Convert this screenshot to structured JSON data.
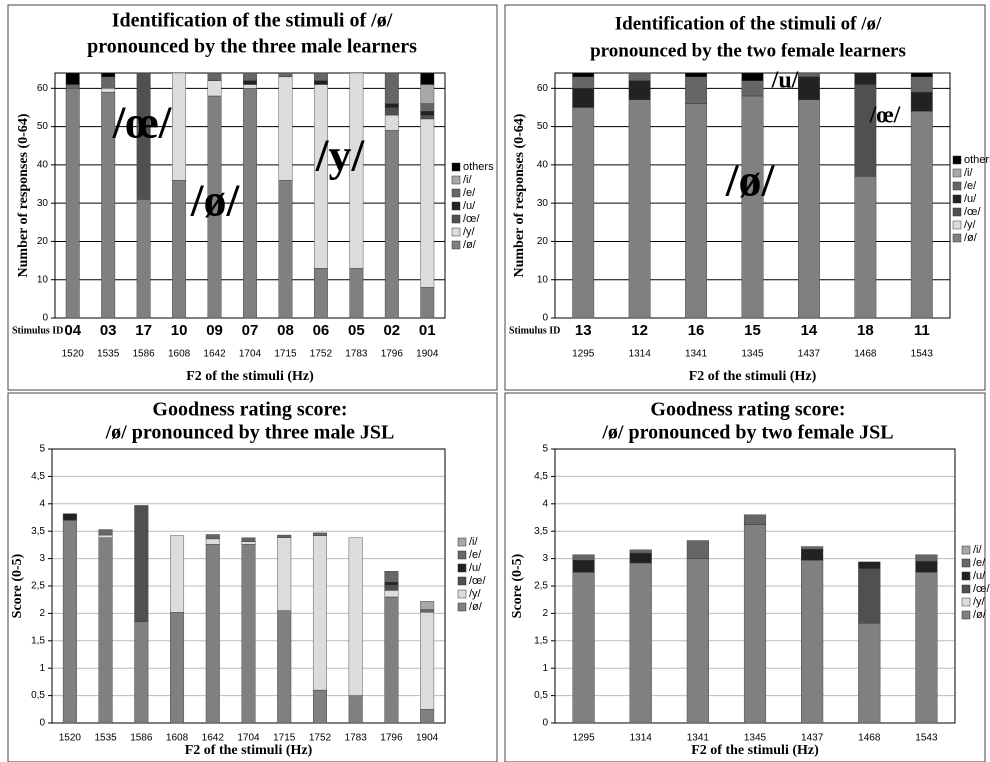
{
  "chart_data": [
    {
      "type": "bar",
      "stacked": true,
      "title": [
        "Identification of the stimuli of /ø/",
        "pronounced by the three male learners"
      ],
      "y_label": "Number of responses (0-64)",
      "x_label": "F2 of the stimuli (Hz)",
      "stimulus_id_label": "Stimulus ID",
      "stimulus_ids": [
        "04",
        "03",
        "17",
        "10",
        "09",
        "07",
        "08",
        "06",
        "05",
        "02",
        "01"
      ],
      "categories": [
        "1520",
        "1535",
        "1586",
        "1608",
        "1642",
        "1704",
        "1715",
        "1752",
        "1783",
        "1796",
        "1904"
      ],
      "ylim": [
        0,
        64
      ],
      "yticks": [
        0,
        10,
        20,
        30,
        40,
        50,
        60
      ],
      "grid": true,
      "legend": "right",
      "annotations": [
        "/œ/",
        "/ø/",
        "/y/"
      ],
      "series": [
        {
          "name": "/ø/",
          "color": "#808080",
          "values": [
            60,
            59,
            31,
            36,
            58,
            60,
            36,
            13,
            13,
            49,
            8
          ]
        },
        {
          "name": "/y/",
          "color": "#dcdcdc",
          "values": [
            0,
            1,
            0,
            28,
            4,
            1,
            27,
            48,
            51,
            4,
            44
          ]
        },
        {
          "name": "/œ/",
          "color": "#505050",
          "values": [
            0,
            0,
            33,
            0,
            0,
            0,
            0,
            0,
            0,
            2,
            1
          ]
        },
        {
          "name": "/u/",
          "color": "#222222",
          "values": [
            0,
            0,
            0,
            0,
            0,
            1,
            0,
            1,
            0,
            1,
            1
          ]
        },
        {
          "name": "/e/",
          "color": "#666666",
          "values": [
            1,
            3,
            0,
            0,
            2,
            2,
            1,
            2,
            0,
            8,
            2
          ]
        },
        {
          "name": "/i/",
          "color": "#a8a8a8",
          "values": [
            0,
            0,
            0,
            0,
            0,
            0,
            0,
            0,
            0,
            0,
            5
          ]
        },
        {
          "name": "others",
          "color": "#000000",
          "values": [
            3,
            1,
            0,
            0,
            0,
            0,
            0,
            0,
            0,
            0,
            3
          ]
        }
      ]
    },
    {
      "type": "bar",
      "stacked": true,
      "title": [
        "Identification of the stimuli of /ø/",
        "pronounced by the two female learners"
      ],
      "y_label": "Number of responses (0-64)",
      "x_label": "F2 of the stimuli (Hz)",
      "stimulus_id_label": "Stimulus ID",
      "stimulus_ids": [
        "13",
        "12",
        "16",
        "15",
        "14",
        "18",
        "11"
      ],
      "categories": [
        "1295",
        "1314",
        "1341",
        "1345",
        "1437",
        "1468",
        "1543"
      ],
      "ylim": [
        0,
        64
      ],
      "yticks": [
        0,
        10,
        20,
        30,
        40,
        50,
        60
      ],
      "grid": true,
      "legend": "right",
      "annotations": [
        "/ø/",
        "/u/",
        "/œ/"
      ],
      "series": [
        {
          "name": "/ø/",
          "color": "#808080",
          "values": [
            55,
            57,
            56,
            58,
            57,
            37,
            54
          ]
        },
        {
          "name": "/y/",
          "color": "#dcdcdc",
          "values": [
            0,
            0,
            0,
            0,
            0,
            0,
            0
          ]
        },
        {
          "name": "/œ/",
          "color": "#505050",
          "values": [
            0,
            0,
            0,
            0,
            0,
            24,
            0
          ]
        },
        {
          "name": "/u/",
          "color": "#222222",
          "values": [
            5,
            5,
            0,
            0,
            6,
            3,
            5
          ]
        },
        {
          "name": "/e/",
          "color": "#666666",
          "values": [
            3,
            2,
            7,
            4,
            1,
            0,
            4
          ]
        },
        {
          "name": "/i/",
          "color": "#a8a8a8",
          "values": [
            0,
            0,
            0,
            0,
            0,
            0,
            0
          ]
        },
        {
          "name": "others",
          "color": "#000000",
          "values": [
            1,
            0,
            1,
            2,
            0,
            0,
            1
          ]
        }
      ]
    },
    {
      "type": "bar",
      "stacked": true,
      "title": [
        "Goodness rating score:",
        "/ø/ pronounced by three male JSL"
      ],
      "y_label": "Score (0-5)",
      "x_label": "F2 of the stimuli (Hz)",
      "categories": [
        "1520",
        "1535",
        "1586",
        "1608",
        "1642",
        "1704",
        "1715",
        "1752",
        "1783",
        "1796",
        "1904"
      ],
      "ylim": [
        0,
        5
      ],
      "yticks": [
        0,
        {
          "value": 0.5,
          "label": "0,5"
        },
        1,
        {
          "value": 1.5,
          "label": "1,5"
        },
        2,
        {
          "value": 2.5,
          "label": "2,5"
        },
        3,
        {
          "value": 3.5,
          "label": "3,5"
        },
        4,
        {
          "value": 4.5,
          "label": "4,5"
        },
        5
      ],
      "grid": true,
      "legend": "right",
      "series": [
        {
          "name": "/ø/",
          "color": "#808080",
          "values": [
            3.7,
            3.38,
            1.85,
            2.02,
            3.26,
            3.26,
            2.05,
            0.6,
            0.5,
            2.3,
            0.25
          ]
        },
        {
          "name": "/y/",
          "color": "#dcdcdc",
          "values": [
            0,
            0.05,
            0,
            1.4,
            0.1,
            0.05,
            1.33,
            2.82,
            2.88,
            0.12,
            1.77
          ]
        },
        {
          "name": "/œ/",
          "color": "#505050",
          "values": [
            0,
            0,
            2.12,
            0,
            0,
            0,
            0,
            0,
            0,
            0.1,
            0
          ]
        },
        {
          "name": "/u/",
          "color": "#222222",
          "values": [
            0.12,
            0,
            0,
            0,
            0,
            0,
            0,
            0,
            0,
            0.05,
            0
          ]
        },
        {
          "name": "/e/",
          "color": "#666666",
          "values": [
            0,
            0.1,
            0,
            0,
            0.08,
            0.07,
            0.05,
            0.05,
            0,
            0.2,
            0.05
          ]
        },
        {
          "name": "/i/",
          "color": "#a8a8a8",
          "values": [
            0,
            0,
            0,
            0,
            0,
            0,
            0,
            0,
            0,
            0,
            0.15
          ]
        }
      ]
    },
    {
      "type": "bar",
      "stacked": true,
      "title": [
        "Goodness rating score:",
        "/ø/ pronounced by two female JSL"
      ],
      "y_label": "Score (0-5)",
      "x_label": "F2 of the stimuli (Hz)",
      "categories": [
        "1295",
        "1314",
        "1341",
        "1345",
        "1437",
        "1468",
        "1543"
      ],
      "ylim": [
        0,
        5
      ],
      "yticks": [
        0,
        {
          "value": 0.5,
          "label": "0,5"
        },
        1,
        {
          "value": 1.5,
          "label": "1,5"
        },
        2,
        {
          "value": 2.5,
          "label": "2,5"
        },
        3,
        {
          "value": 3.5,
          "label": "3,5"
        },
        4,
        {
          "value": 4.5,
          "label": "4,5"
        },
        5
      ],
      "grid": true,
      "legend": "right",
      "series": [
        {
          "name": "/ø/",
          "color": "#808080",
          "values": [
            2.75,
            2.92,
            3.0,
            3.62,
            2.97,
            1.82,
            2.75
          ]
        },
        {
          "name": "/y/",
          "color": "#dcdcdc",
          "values": [
            0,
            0,
            0,
            0,
            0,
            0,
            0
          ]
        },
        {
          "name": "/œ/",
          "color": "#505050",
          "values": [
            0,
            0,
            0,
            0,
            0,
            1.0,
            0
          ]
        },
        {
          "name": "/u/",
          "color": "#222222",
          "values": [
            0.22,
            0.18,
            0,
            0,
            0.2,
            0.12,
            0.2
          ]
        },
        {
          "name": "/e/",
          "color": "#666666",
          "values": [
            0.1,
            0.06,
            0.33,
            0.18,
            0.05,
            0,
            0.12
          ]
        },
        {
          "name": "/i/",
          "color": "#a8a8a8",
          "values": [
            0,
            0,
            0,
            0,
            0,
            0,
            0
          ]
        }
      ]
    }
  ]
}
